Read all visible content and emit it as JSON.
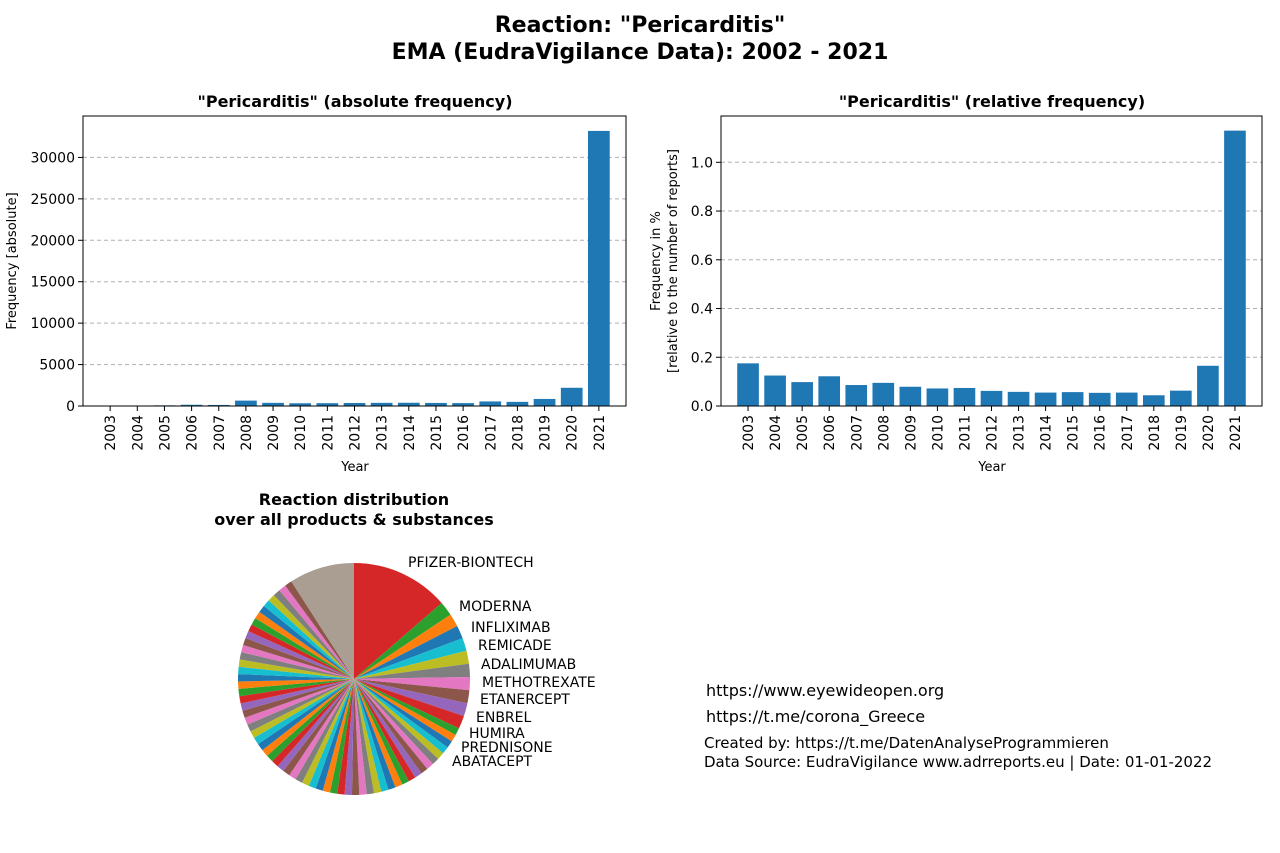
{
  "figure": {
    "title_line1": "Reaction: \"Pericarditis\"",
    "title_line2": "EMA (EudraVigilance Data): 2002 - 2021"
  },
  "footer": {
    "link1": "https://www.eyewideopen.org",
    "link2": "https://t.me/corona_Greece",
    "created_by": "Created by: https://t.me/DatenAnalyseProgrammieren",
    "data_source": "Data Source: EudraVigilance www.adrreports.eu | Date: 01-01-2022"
  },
  "colors": {
    "bar": "#1f77b4",
    "grid": "#b0b0b0"
  },
  "chart_data": [
    {
      "type": "bar",
      "title": "\"Pericarditis\" (absolute frequency)",
      "xlabel": "Year",
      "ylabel": "Frequency [absolute]",
      "categories": [
        "2003",
        "2004",
        "2005",
        "2006",
        "2007",
        "2008",
        "2009",
        "2010",
        "2011",
        "2012",
        "2013",
        "2014",
        "2015",
        "2016",
        "2017",
        "2018",
        "2019",
        "2020",
        "2021"
      ],
      "values": [
        20,
        30,
        80,
        150,
        130,
        650,
        380,
        330,
        340,
        360,
        380,
        390,
        370,
        350,
        550,
        500,
        850,
        2200,
        33200
      ],
      "ylim": [
        0,
        35000
      ],
      "yticks": [
        0,
        5000,
        10000,
        15000,
        20000,
        25000,
        30000
      ],
      "grid": "horizontal dashed"
    },
    {
      "type": "bar",
      "title": "\"Pericarditis\" (relative frequency)",
      "xlabel": "Year",
      "ylabel_line1": "Frequency in %",
      "ylabel_line2": "[relative to the number of reports]",
      "categories": [
        "2003",
        "2004",
        "2005",
        "2006",
        "2007",
        "2008",
        "2009",
        "2010",
        "2011",
        "2012",
        "2013",
        "2014",
        "2015",
        "2016",
        "2017",
        "2018",
        "2019",
        "2020",
        "2021"
      ],
      "values": [
        0.175,
        0.125,
        0.098,
        0.122,
        0.086,
        0.095,
        0.079,
        0.072,
        0.074,
        0.062,
        0.058,
        0.055,
        0.057,
        0.054,
        0.055,
        0.044,
        0.063,
        0.165,
        1.13
      ],
      "ylim": [
        0,
        1.19
      ],
      "yticks": [
        0.0,
        0.2,
        0.4,
        0.6,
        0.8,
        1.0
      ],
      "grid": "horizontal dashed"
    },
    {
      "type": "pie",
      "title_line1": "Reaction distribution",
      "title_line2": "over all products & substances",
      "labeled": [
        {
          "label": "PFIZER-BIONTECH",
          "value": 15.0,
          "color": "#d62728"
        },
        {
          "label": "MODERNA",
          "value": 2.2,
          "color": "#2ca02c"
        },
        {
          "label": "INFLIXIMAB",
          "value": 2.0,
          "color": "#ff7f0e"
        },
        {
          "label": "REMICADE",
          "value": 2.0,
          "color": "#1f77b4"
        },
        {
          "label": "ADALIMUMAB",
          "value": 2.0,
          "color": "#17becf"
        },
        {
          "label": "METHOTREXATE",
          "value": 2.0,
          "color": "#bcbd22"
        },
        {
          "label": "ETANERCEPT",
          "value": 2.0,
          "color": "#7f7f7f"
        },
        {
          "label": "ENBREL",
          "value": 2.0,
          "color": "#e377c2"
        },
        {
          "label": "HUMIRA",
          "value": 2.0,
          "color": "#8c564b"
        },
        {
          "label": "PREDNISONE",
          "value": 2.0,
          "color": "#9467bd"
        },
        {
          "label": "ABATACEPT",
          "value": 2.0,
          "color": "#d62728"
        }
      ],
      "unlabeled_slices": 58,
      "unlabeled_total": 64.8,
      "last_slice": 10.0,
      "palette": [
        "#2ca02c",
        "#ff7f0e",
        "#1f77b4",
        "#17becf",
        "#bcbd22",
        "#7f7f7f",
        "#e377c2",
        "#8c564b",
        "#9467bd",
        "#d62728"
      ],
      "last_color": "#aa9d92"
    }
  ]
}
